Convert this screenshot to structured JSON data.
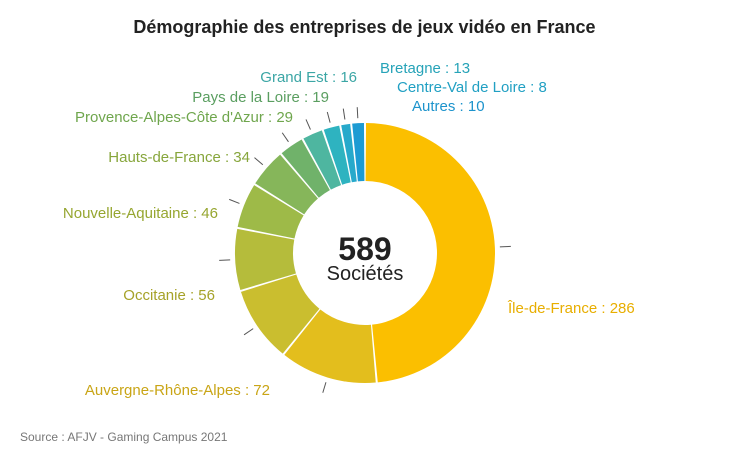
{
  "chart_data": {
    "type": "pie",
    "variant": "donut",
    "title": "Démographie des entreprises de jeux vidéo en France",
    "categories": [
      "Île-de-France",
      "Auvergne-Rhône-Alpes",
      "Occitanie",
      "Nouvelle-Aquitaine",
      "Hauts-de-France",
      "Provence-Alpes-Côte d'Azur",
      "Pays de la Loire",
      "Grand Est",
      "Bretagne",
      "Centre-Val de Loire",
      "Autres"
    ],
    "values": [
      286,
      72,
      56,
      46,
      34,
      29,
      19,
      16,
      13,
      8,
      10
    ],
    "labels": [
      "Île-de-France : 286",
      "Auvergne-Rhône-Alpes : 72",
      "Occitanie : 56",
      "Nouvelle-Aquitaine : 46",
      "Hauts-de-France : 34",
      "Provence-Alpes-Côte d'Azur : 29",
      "Pays de la Loire : 19",
      "Grand Est : 16",
      "Bretagne : 13",
      "Centre-Val de Loire : 8",
      "Autres : 10"
    ],
    "colors": [
      "#FBBF00",
      "#E3BE1D",
      "#CABE2F",
      "#B5BC3B",
      "#9EBA48",
      "#86B65A",
      "#70B26A",
      "#4EB6A0",
      "#2EB3C0",
      "#27A9CB",
      "#1D9BD3"
    ],
    "label_colors": [
      "#E8AE00",
      "#C9A516",
      "#A6A229",
      "#96A630",
      "#87A63C",
      "#6FA64D",
      "#5A9E60",
      "#3BA6A5",
      "#26A3B8",
      "#21A0C3",
      "#1C93CC"
    ],
    "center": {
      "value": "589",
      "label": "Sociétés"
    }
  },
  "source": "Source : AFJV - Gaming Campus 2021"
}
